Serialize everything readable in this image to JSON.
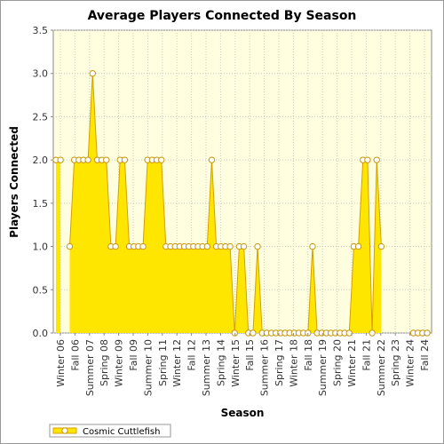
{
  "chart_data": {
    "type": "area",
    "title": "Average Players Connected By Season",
    "xlabel": "Season",
    "ylabel": "Players Connected",
    "ylim": [
      0,
      3.5
    ],
    "yticks": [
      "0.0",
      "0.5",
      "1.0",
      "1.5",
      "2.0",
      "2.5",
      "3.0",
      "3.5"
    ],
    "grid": true,
    "legend_position": "bottom-left",
    "colors": {
      "fill": "#ffe600",
      "line": "#d4a000",
      "plot_bg": "#ffffe0",
      "marker_fill": "#ffffff"
    },
    "xtick_labels": [
      "Winter 06",
      "Fall 06",
      "Summer 07",
      "Spring 08",
      "Winter 09",
      "Fall 09",
      "Summer 10",
      "Spring 11",
      "Winter 12",
      "Fall 12",
      "Summer 13",
      "Spring 14",
      "Winter 15",
      "Fall 15",
      "Summer 16",
      "Spring 17",
      "Winter 18",
      "Fall 18",
      "Summer 19",
      "Spring 20",
      "Winter 21",
      "Fall 21",
      "Summer 22",
      "Spring 23",
      "Winter 24",
      "Fall 24"
    ],
    "series": [
      {
        "name": "Cosmic Cuttlefish",
        "values": [
          2,
          2,
          null,
          1,
          2,
          2,
          2,
          2,
          3,
          2,
          2,
          2,
          1,
          1,
          2,
          2,
          1,
          1,
          1,
          1,
          2,
          2,
          2,
          2,
          1,
          1,
          1,
          1,
          1,
          1,
          1,
          1,
          1,
          1,
          2,
          1,
          1,
          1,
          1,
          0,
          1,
          1,
          0,
          0,
          1,
          0,
          0,
          0,
          0,
          0,
          0,
          0,
          0,
          0,
          0,
          0,
          1,
          0,
          0,
          0,
          0,
          0,
          0,
          0,
          0,
          1,
          1,
          2,
          2,
          0,
          2,
          1,
          null,
          null,
          null,
          null,
          null,
          null,
          0,
          0,
          0,
          0
        ]
      }
    ]
  }
}
